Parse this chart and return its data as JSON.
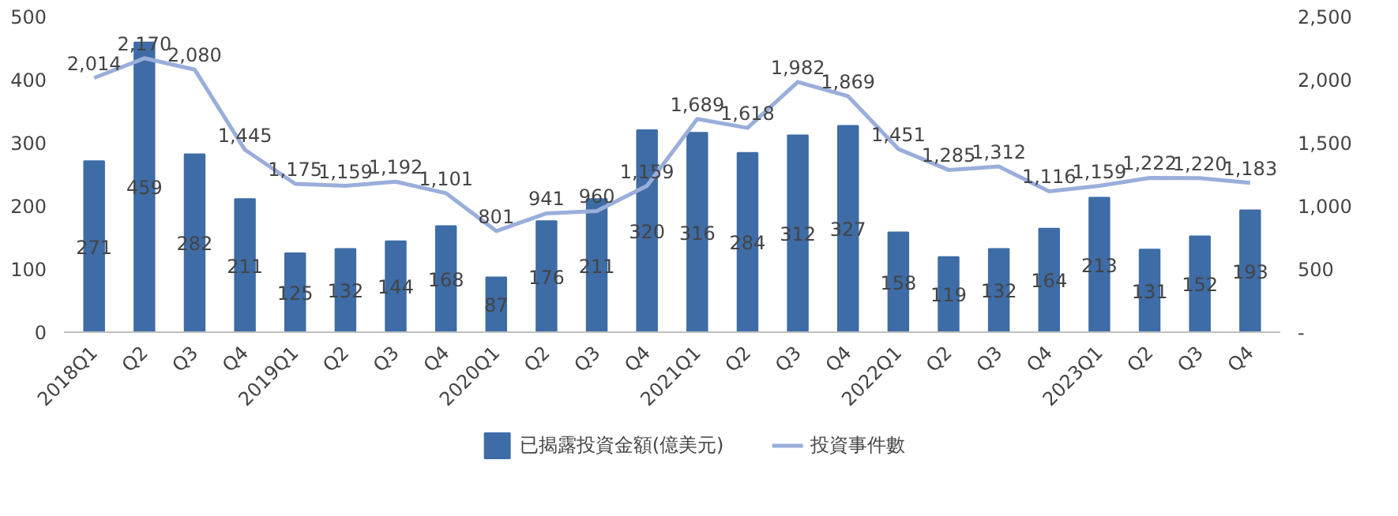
{
  "chart_data": {
    "type": "bar",
    "categories": [
      "2018Q1",
      "Q2",
      "Q3",
      "Q4",
      "2019Q1",
      "Q2",
      "Q3",
      "Q4",
      "2020Q1",
      "Q2",
      "Q3",
      "Q4",
      "2021Q1",
      "Q2",
      "Q3",
      "Q4",
      "2022Q1",
      "Q2",
      "Q3",
      "Q4",
      "2023Q1",
      "Q2",
      "Q3",
      "Q4"
    ],
    "series": [
      {
        "name": "已揭露投資金額(億美元)",
        "type": "bar",
        "color": "#3e6ca6",
        "values": [
          271,
          459,
          282,
          211,
          125,
          132,
          144,
          168,
          87,
          176,
          211,
          320,
          316,
          284,
          312,
          327,
          158,
          119,
          132,
          164,
          213,
          131,
          152,
          193
        ],
        "value_labels": [
          "271",
          "459",
          "282",
          "211",
          "125",
          "132",
          "144",
          "168",
          "87",
          "176",
          "211",
          "320",
          "316",
          "284",
          "312",
          "327",
          "158",
          "119",
          "132",
          "164",
          "213",
          "131",
          "152",
          "193"
        ]
      },
      {
        "name": "投資事件數",
        "type": "line",
        "axis": "y2",
        "color": "#9aaedb",
        "values": [
          2014,
          2170,
          2080,
          1445,
          1175,
          1159,
          1192,
          1101,
          801,
          941,
          960,
          1159,
          1689,
          1618,
          1982,
          1869,
          1451,
          1285,
          1312,
          1116,
          1159,
          1222,
          1220,
          1183
        ],
        "value_labels": [
          "2,014",
          "2,170",
          "2,080",
          "1,445",
          "1,175",
          "1,159",
          "1,192",
          "1,101",
          "801",
          "941",
          "960",
          "1,159",
          "1,689",
          "1,618",
          "1,982",
          "1,869",
          "1,451",
          "1,285",
          "1,312",
          "1,116",
          "1,159",
          "1,222",
          "1,220",
          "1,183"
        ]
      }
    ],
    "ylim": [
      0,
      500
    ],
    "yticks": [
      0,
      100,
      200,
      300,
      400,
      500
    ],
    "y2lim": [
      0,
      2500
    ],
    "y2ticks": [
      {
        "value": 0,
        "label": "-"
      },
      {
        "value": 500,
        "label": "500"
      },
      {
        "value": 1000,
        "label": "1,000"
      },
      {
        "value": 1500,
        "label": "1,500"
      },
      {
        "value": 2000,
        "label": "2,000"
      },
      {
        "value": 2500,
        "label": "2,500"
      }
    ],
    "grid": false,
    "legend": "bottom",
    "marker": "none",
    "line_style": "solid"
  }
}
